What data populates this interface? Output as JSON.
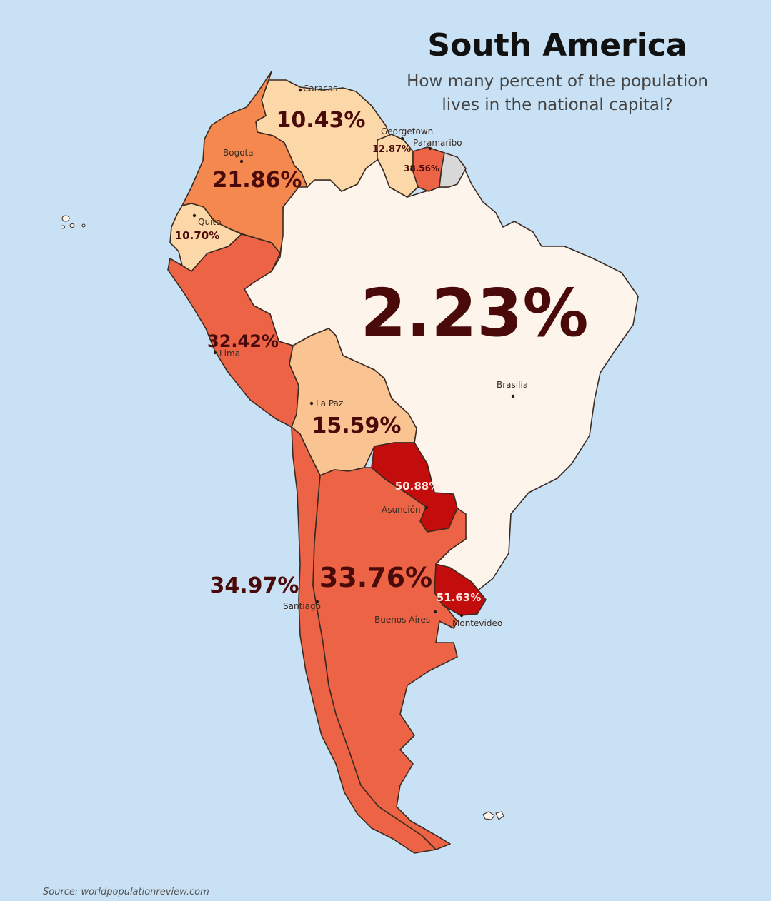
{
  "title": "South America",
  "subtitle_line1": "How many percent of the population",
  "subtitle_line2": "lives in the national capital?",
  "source": "Source: worldpopulationreview.com",
  "colors": {
    "ocean": "#c9e1f4",
    "lowest": "#fdf5ec",
    "low": "#fcd8a8",
    "medium_low": "#f9c491",
    "medium": "#f4884e",
    "high": "#ec6445",
    "highest": "#c30d0d",
    "no_data": "#d8d8d8"
  },
  "countries": [
    {
      "name": "Brazil",
      "capital": "Brasilia",
      "percent": "2.23%",
      "fill": "#fdf5ec"
    },
    {
      "name": "Venezuela",
      "capital": "Caracas",
      "percent": "10.43%",
      "fill": "#fcd8a8"
    },
    {
      "name": "Ecuador",
      "capital": "Quito",
      "percent": "10.70%",
      "fill": "#fcd8a8"
    },
    {
      "name": "Guyana",
      "capital": "Georgetown",
      "percent": "12.87%",
      "fill": "#fcd8a8"
    },
    {
      "name": "Bolivia",
      "capital": "La Paz",
      "percent": "15.59%",
      "fill": "#f9c491"
    },
    {
      "name": "Colombia",
      "capital": "Bogota",
      "percent": "21.86%",
      "fill": "#f4884e"
    },
    {
      "name": "Peru",
      "capital": "Lima",
      "percent": "32.42%",
      "fill": "#ec6445"
    },
    {
      "name": "Argentina",
      "capital": "Buenos Aires",
      "percent": "33.76%",
      "fill": "#ec6445"
    },
    {
      "name": "Chile",
      "capital": "Santiago",
      "percent": "34.97%",
      "fill": "#ec6445"
    },
    {
      "name": "Suriname",
      "capital": "Paramaribo",
      "percent": "38.56%",
      "fill": "#ec6445"
    },
    {
      "name": "Paraguay",
      "capital": "Asunción",
      "percent": "50.88%",
      "fill": "#c30d0d"
    },
    {
      "name": "Uruguay",
      "capital": "Montevideo",
      "percent": "51.63%",
      "fill": "#c30d0d"
    },
    {
      "name": "French Guiana",
      "capital": "",
      "percent": "",
      "fill": "#d8d8d8"
    }
  ]
}
